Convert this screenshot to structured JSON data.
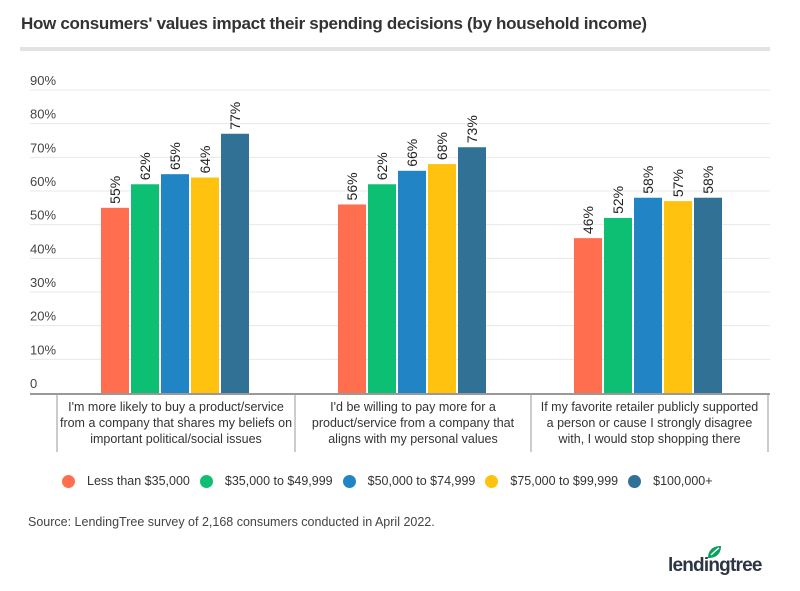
{
  "chart_data": {
    "type": "bar",
    "title": "How consumers' values impact their spending decisions (by household income)",
    "xlabel": "",
    "ylabel": "",
    "ylim": [
      0,
      90
    ],
    "yticks": [
      "0",
      "10%",
      "20%",
      "30%",
      "40%",
      "50%",
      "60%",
      "70%",
      "80%",
      "90%"
    ],
    "ytick_values": [
      0,
      10,
      20,
      30,
      40,
      50,
      60,
      70,
      80,
      90
    ],
    "grid": true,
    "legend_position": "bottom",
    "categories": [
      "I'm more likely to buy a product/service from a company that shares my beliefs on important political/social issues",
      "I'd be willing to pay more for a product/service from a company that aligns with my personal values",
      "If my favorite retailer publicly supported a person or cause I strongly disagree with, I would stop shopping there"
    ],
    "category_lines": [
      [
        "I'm more likely to buy a product/service",
        "from a company that shares my beliefs on",
        "important political/social issues"
      ],
      [
        "I'd be willing to pay more for a",
        "product/service from a company that",
        "aligns with my personal values"
      ],
      [
        "If my favorite retailer publicly supported",
        "a person or cause I strongly disagree",
        "with, I would stop shopping there"
      ]
    ],
    "series": [
      {
        "name": "Less than $35,000",
        "color": "#ff6e4f",
        "values": [
          55,
          56,
          46
        ]
      },
      {
        "name": "$35,000 to $49,999",
        "color": "#0dbf73",
        "values": [
          62,
          62,
          52
        ]
      },
      {
        "name": "$50,000 to $74,999",
        "color": "#2185c5",
        "values": [
          65,
          66,
          58
        ]
      },
      {
        "name": "$75,000 to $99,999",
        "color": "#ffc20e",
        "values": [
          64,
          68,
          57
        ]
      },
      {
        "name": "$100,000+",
        "color": "#317196",
        "values": [
          77,
          73,
          58
        ]
      }
    ],
    "value_suffix": "%"
  },
  "source": "Source: LendingTree survey of 2,168 consumers conducted in April 2022.",
  "brand": {
    "name": "lendingtree",
    "leaf_color": "#08a05c",
    "text_color": "#2b3544"
  }
}
